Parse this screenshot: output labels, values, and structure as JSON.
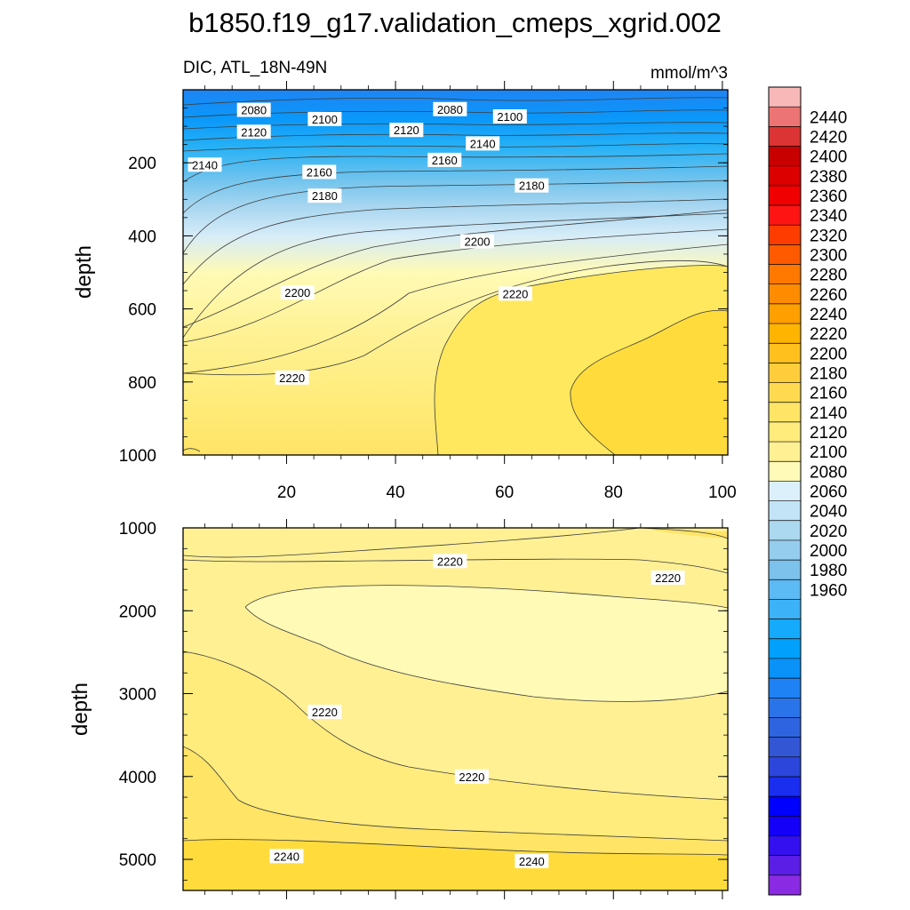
{
  "title": "b1850.f19_g17.validation_cmeps_xgrid.002",
  "chart_data": [
    {
      "type": "heatmap",
      "panel": "upper",
      "variable_label": "DIC, ATL_18N-49N",
      "units_label": "mmol/m^3",
      "ylabel": "depth",
      "x_ticks": [
        20,
        40,
        60,
        80,
        100
      ],
      "y_ticks": [
        200,
        400,
        600,
        800,
        1000
      ],
      "xlim": [
        1,
        101
      ],
      "ylim": [
        1000,
        0
      ],
      "contour_interval": 10,
      "contour_labels": [
        {
          "text": "2080",
          "x": 14,
          "y": 55
        },
        {
          "text": "2080",
          "x": 50,
          "y": 53
        },
        {
          "text": "2100",
          "x": 27,
          "y": 80
        },
        {
          "text": "2100",
          "x": 61,
          "y": 73
        },
        {
          "text": "2120",
          "x": 14,
          "y": 115
        },
        {
          "text": "2120",
          "x": 42,
          "y": 110
        },
        {
          "text": "2140",
          "x": 5,
          "y": 205
        },
        {
          "text": "2140",
          "x": 56,
          "y": 147
        },
        {
          "text": "2160",
          "x": 26,
          "y": 225
        },
        {
          "text": "2160",
          "x": 49,
          "y": 192
        },
        {
          "text": "2180",
          "x": 27,
          "y": 290
        },
        {
          "text": "2180",
          "x": 65,
          "y": 262
        },
        {
          "text": "2200",
          "x": 22,
          "y": 555
        },
        {
          "text": "2200",
          "x": 55,
          "y": 415
        },
        {
          "text": "2220",
          "x": 21,
          "y": 788
        },
        {
          "text": "2220",
          "x": 62,
          "y": 558
        }
      ]
    },
    {
      "type": "heatmap",
      "panel": "lower",
      "ylabel": "depth",
      "y_ticks": [
        1000,
        2000,
        3000,
        4000,
        5000
      ],
      "xlim": [
        1,
        101
      ],
      "ylim": [
        5375,
        1000
      ],
      "contour_interval": 10,
      "contour_labels": [
        {
          "text": "2220",
          "x": 50,
          "y": 1400
        },
        {
          "text": "2220",
          "x": 90,
          "y": 1600
        },
        {
          "text": "2220",
          "x": 27,
          "y": 3220
        },
        {
          "text": "2220",
          "x": 54,
          "y": 4000
        },
        {
          "text": "2240",
          "x": 20,
          "y": 4960
        },
        {
          "text": "2240",
          "x": 65,
          "y": 5020
        }
      ]
    }
  ],
  "colorbar": {
    "labels": [
      "2440",
      "2420",
      "2400",
      "2380",
      "2360",
      "2340",
      "2320",
      "2300",
      "2280",
      "2260",
      "2240",
      "2220",
      "2200",
      "2180",
      "2160",
      "2140",
      "2120",
      "2100",
      "2080",
      "2060",
      "2040",
      "2020",
      "2000",
      "1980",
      "1960"
    ],
    "colors": [
      "#f8b8b8",
      "#ec7474",
      "#dc3434",
      "#c80000",
      "#dc0000",
      "#f00000",
      "#ff1414",
      "#ff3c00",
      "#ff5a00",
      "#ff7800",
      "#ff8c00",
      "#ffa000",
      "#ffb400",
      "#ffc01e",
      "#ffcc3c",
      "#ffda50",
      "#ffe466",
      "#ffec7c",
      "#fff094",
      "#fffab8",
      "#dcf0fc",
      "#c2e4f6",
      "#acd8f0",
      "#94cdee",
      "#7cc2ec",
      "#5cbaf4",
      "#3cb2f8",
      "#16aafc",
      "#00a0fc",
      "#0a92f8",
      "#1e82f4",
      "#2a74ea",
      "#2e64e0",
      "#3256d4",
      "#2c46dc",
      "#1a2ef0",
      "#0000ff",
      "#1400f8",
      "#3410f0",
      "#5a1ee6",
      "#8a2ae2"
    ]
  }
}
